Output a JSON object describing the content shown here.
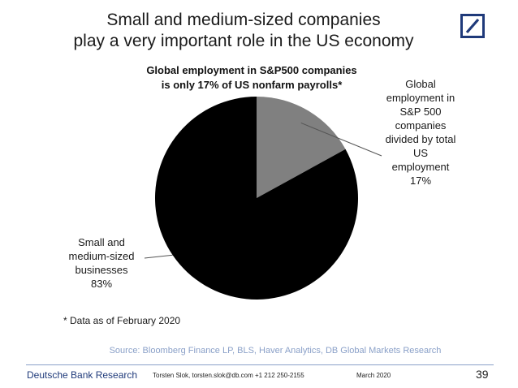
{
  "slide": {
    "title_line1": "Small and medium-sized companies",
    "title_line2": "play a very important role in the US economy",
    "footnote": "* Data as of  February 2020",
    "source": "Source: Bloomberg Finance LP, BLS, Haver  Analytics, DB Global Markets Research",
    "brand": "Deutsche Bank Research",
    "contact": "Torsten Slok, torsten.slok@db.com  +1 212 250-2155",
    "date": "March 2020",
    "page_number": "39",
    "logo_icon": "deutsche-bank-logo-icon",
    "brand_color": "#1f3a7a"
  },
  "chart_data": {
    "type": "pie",
    "title_line1": "Global employment in S&P500 companies",
    "title_line2": "is only 17% of US nonfarm payrolls*",
    "slices": [
      {
        "label_lines": [
          "Global",
          "employment in",
          "S&P 500",
          "companies",
          "divided by total",
          "US",
          "employment"
        ],
        "value": 17,
        "value_label": "17%",
        "color": "#808080"
      },
      {
        "label_lines": [
          "Small and",
          "medium-sized",
          "businesses"
        ],
        "value": 83,
        "value_label": "83%",
        "color": "#000000"
      }
    ]
  }
}
